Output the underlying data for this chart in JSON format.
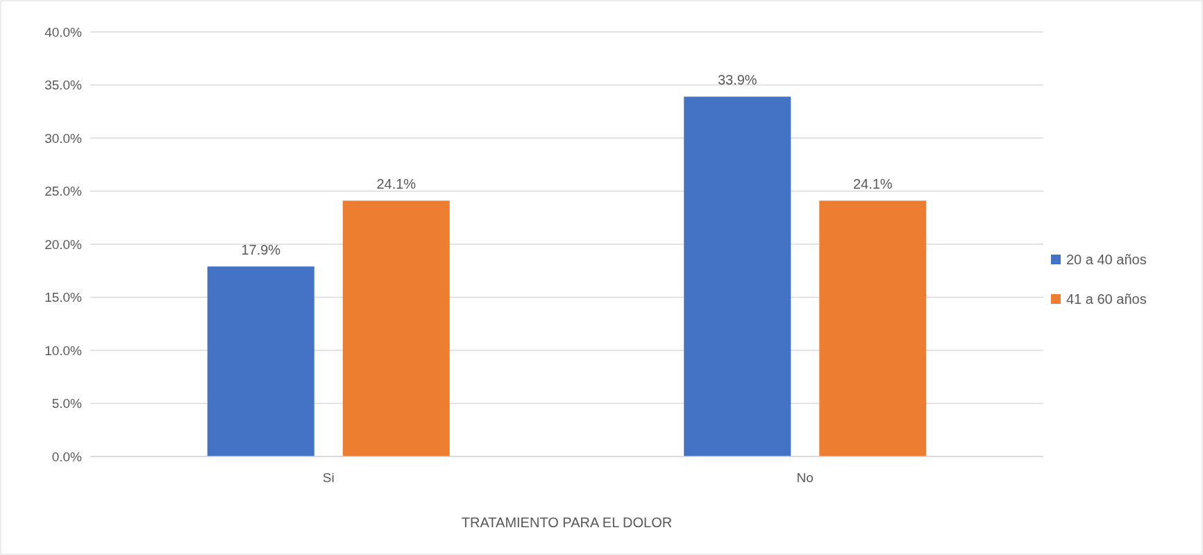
{
  "chart_data": {
    "type": "bar",
    "xlabel": "TRATAMIENTO PARA EL DOLOR",
    "categories": [
      "Si",
      "No"
    ],
    "series": [
      {
        "name": "20 a 40 años",
        "color": "#4472c4",
        "values": [
          17.9,
          33.9
        ],
        "value_labels": [
          "17.9%",
          "33.9%"
        ]
      },
      {
        "name": "41 a 60 años",
        "color": "#ed7d31",
        "values": [
          24.1,
          24.1
        ],
        "value_labels": [
          "24.1%",
          "24.1%"
        ]
      }
    ],
    "ylim": [
      0,
      40
    ],
    "yticks": [
      {
        "value": 0,
        "label": "0.0%"
      },
      {
        "value": 5,
        "label": "5.0%"
      },
      {
        "value": 10,
        "label": "10.0%"
      },
      {
        "value": 15,
        "label": "15.0%"
      },
      {
        "value": 20,
        "label": "20.0%"
      },
      {
        "value": 25,
        "label": "25.0%"
      },
      {
        "value": 30,
        "label": "30.0%"
      },
      {
        "value": 35,
        "label": "35.0%"
      },
      {
        "value": 40,
        "label": "40.0%"
      }
    ],
    "grid": "y",
    "legend": "right"
  }
}
